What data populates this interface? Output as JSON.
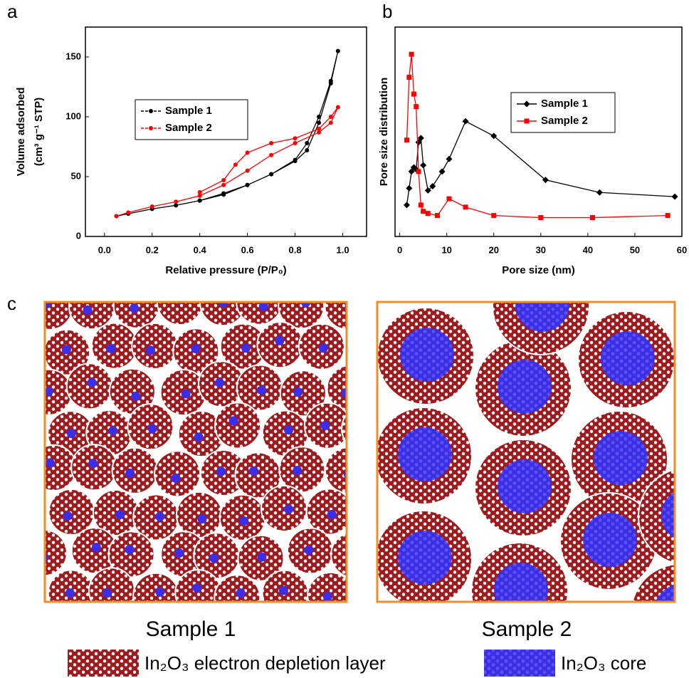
{
  "chart_data": [
    {
      "type": "line",
      "ylabel": [
        "Volume adsorbed",
        "(cm³ g⁻¹ STP)"
      ],
      "xlabel": "Relative pressure (P/P₀)",
      "xlim": [
        -0.08,
        1.1
      ],
      "ylim": [
        0,
        175
      ],
      "xticks": [
        {
          "value": 0,
          "label": "0.0"
        },
        {
          "value": 0.2,
          "label": "0.2"
        },
        {
          "value": 0.4,
          "label": "0.4"
        },
        {
          "value": 0.6,
          "label": "0.6"
        },
        {
          "value": 0.8,
          "label": "0.8"
        },
        {
          "value": 1,
          "label": "1.0"
        }
      ],
      "yticks": [
        0,
        50,
        100,
        150
      ],
      "legend": "center-left",
      "series": [
        {
          "name": "Sample 1",
          "color": "#000000",
          "marker": "circle",
          "x": [
            0.05,
            0.1,
            0.2,
            0.3,
            0.4,
            0.5,
            0.6,
            0.7,
            0.8,
            0.85,
            0.9,
            0.95,
            0.98,
            0.95,
            0.9,
            0.85,
            0.8,
            0.7,
            0.6,
            0.5,
            0.4
          ],
          "values": [
            17,
            19,
            23,
            26,
            30,
            35,
            43,
            52,
            63,
            72,
            95,
            128,
            155,
            130,
            100,
            78,
            64,
            52,
            43,
            36,
            30
          ]
        },
        {
          "name": "Sample 2",
          "color": "#ff0000",
          "marker": "circle",
          "x": [
            0.05,
            0.1,
            0.2,
            0.3,
            0.4,
            0.5,
            0.6,
            0.7,
            0.8,
            0.9,
            0.95,
            0.98,
            0.95,
            0.9,
            0.8,
            0.7,
            0.6,
            0.55,
            0.5,
            0.4
          ],
          "values": [
            17,
            20,
            25,
            29,
            34,
            43,
            55,
            68,
            78,
            87,
            95,
            108,
            100,
            90,
            82,
            78,
            70,
            60,
            47,
            37
          ]
        }
      ]
    },
    {
      "type": "line",
      "ylabel": [
        "Pore size distribution"
      ],
      "xlabel": "Pore size (nm)",
      "xlim": [
        -1,
        60
      ],
      "ylim": [
        0,
        100
      ],
      "xticks": [
        0,
        10,
        20,
        30,
        40,
        50,
        60
      ],
      "legend": "upper-right",
      "series": [
        {
          "name": "Sample 1",
          "color": "#000000",
          "marker": "diamond",
          "x": [
            1.5,
            2,
            2.5,
            3,
            3.5,
            4,
            4.5,
            5,
            6,
            7,
            9,
            10.5,
            14,
            20,
            31,
            42.5,
            58.5
          ],
          "values": [
            15,
            23,
            31,
            33,
            32,
            45,
            47,
            34,
            22,
            24,
            31,
            37,
            55,
            48,
            27,
            21,
            19
          ]
        },
        {
          "name": "Sample 2",
          "color": "#ff0000",
          "marker": "square",
          "x": [
            1.5,
            2,
            2.5,
            3,
            3.5,
            4,
            4.5,
            5,
            6,
            8,
            10.5,
            14,
            20,
            30,
            41,
            57
          ],
          "values": [
            46,
            76,
            87,
            68,
            62,
            31,
            15,
            12,
            11,
            10,
            18,
            14,
            10,
            9,
            9,
            10
          ]
        }
      ]
    }
  ],
  "panel_labels": [
    "a",
    "b",
    "c"
  ],
  "diagram": {
    "samples": [
      "Sample 1",
      "Sample 2"
    ],
    "legend": [
      "In₂O₃ electron depletion layer",
      "In₂O₃ core"
    ]
  }
}
